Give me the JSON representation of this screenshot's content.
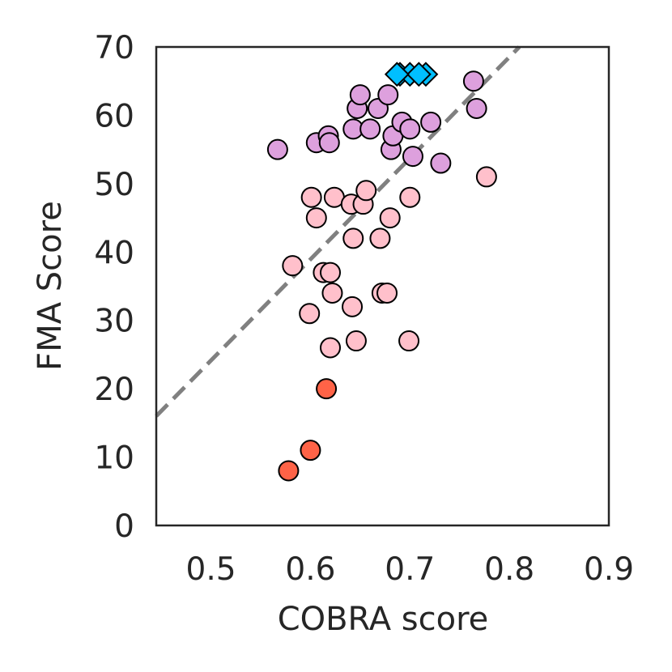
{
  "chart_data": {
    "type": "scatter",
    "title": "",
    "xlabel": "COBRA score",
    "ylabel": "FMA Score",
    "xlim": [
      0.445,
      0.9
    ],
    "ylim": [
      0,
      70
    ],
    "xticks": [
      "0.5",
      "0.6",
      "0.7",
      "0.8",
      "0.9"
    ],
    "yticks": [
      "0",
      "10",
      "20",
      "30",
      "40",
      "50",
      "60",
      "70"
    ],
    "grid": false,
    "legend": "none",
    "reference_line": {
      "style": "dashed",
      "color": "#808080",
      "points": [
        [
          0.445,
          16
        ],
        [
          0.81,
          70
        ]
      ]
    },
    "series": [
      {
        "marker": "circle",
        "color": "#ff6347",
        "points": [
          [
            0.578,
            8
          ],
          [
            0.6,
            11
          ],
          [
            0.616,
            20
          ]
        ]
      },
      {
        "marker": "circle",
        "color": "#ffc0cb",
        "points": [
          [
            0.582,
            38
          ],
          [
            0.599,
            31
          ],
          [
            0.601,
            48
          ],
          [
            0.606,
            45
          ],
          [
            0.613,
            37
          ],
          [
            0.62,
            37
          ],
          [
            0.622,
            34
          ],
          [
            0.62,
            26
          ],
          [
            0.624,
            48
          ],
          [
            0.641,
            47
          ],
          [
            0.643,
            42
          ],
          [
            0.642,
            32
          ],
          [
            0.646,
            27
          ],
          [
            0.653,
            47
          ],
          [
            0.656,
            49
          ],
          [
            0.67,
            42
          ],
          [
            0.672,
            34
          ],
          [
            0.677,
            34
          ],
          [
            0.68,
            45
          ],
          [
            0.7,
            48
          ],
          [
            0.699,
            27
          ],
          [
            0.777,
            51
          ]
        ]
      },
      {
        "marker": "circle",
        "color": "#dda0dd",
        "points": [
          [
            0.567,
            55
          ],
          [
            0.606,
            56
          ],
          [
            0.618,
            57
          ],
          [
            0.619,
            56
          ],
          [
            0.643,
            58
          ],
          [
            0.647,
            61
          ],
          [
            0.65,
            63
          ],
          [
            0.66,
            58
          ],
          [
            0.668,
            61
          ],
          [
            0.678,
            63
          ],
          [
            0.681,
            55
          ],
          [
            0.683,
            57
          ],
          [
            0.692,
            59
          ],
          [
            0.7,
            58
          ],
          [
            0.703,
            54
          ],
          [
            0.721,
            59
          ],
          [
            0.731,
            53
          ],
          [
            0.764,
            65
          ],
          [
            0.767,
            61
          ]
        ]
      },
      {
        "marker": "diamond",
        "color": "#00bfff",
        "points": [
          [
            0.69,
            66
          ],
          [
            0.7,
            66
          ],
          [
            0.716,
            66
          ],
          [
            0.709,
            66
          ],
          [
            0.687,
            66
          ]
        ]
      }
    ]
  }
}
